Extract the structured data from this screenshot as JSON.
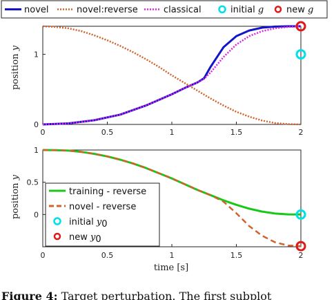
{
  "chart_data": [
    {
      "type": "line",
      "xlabel": "",
      "ylabel": "position y",
      "xlim": [
        0,
        2
      ],
      "ylim": [
        0,
        1.4
      ],
      "xticks": [
        "0",
        "0.5",
        "1",
        "1.5",
        "2"
      ],
      "yticks": [
        "0",
        "1"
      ],
      "ytick_values": [
        0,
        1
      ],
      "legend_position": "top",
      "series": [
        {
          "name": "novel",
          "color": "#1414c8",
          "style": "solid",
          "x": [
            0,
            0.2,
            0.4,
            0.6,
            0.8,
            1.0,
            1.1,
            1.2,
            1.25,
            1.3,
            1.4,
            1.5,
            1.6,
            1.7,
            1.8,
            1.9,
            2.0
          ],
          "y": [
            0,
            0.015,
            0.06,
            0.14,
            0.27,
            0.43,
            0.52,
            0.6,
            0.66,
            0.82,
            1.1,
            1.26,
            1.34,
            1.38,
            1.395,
            1.4,
            1.4
          ]
        },
        {
          "name": "novel:reverse",
          "color": "#d0622c",
          "style": "dotted",
          "x": [
            0,
            0.1,
            0.2,
            0.3,
            0.4,
            0.5,
            0.6,
            0.7,
            0.8,
            0.9,
            1.0,
            1.1,
            1.2,
            1.3,
            1.4,
            1.5,
            1.6,
            1.7,
            1.8,
            1.9,
            2.0
          ],
          "y": [
            1.4,
            1.39,
            1.37,
            1.33,
            1.27,
            1.2,
            1.12,
            1.03,
            0.93,
            0.82,
            0.7,
            0.59,
            0.48,
            0.37,
            0.27,
            0.18,
            0.11,
            0.055,
            0.02,
            0.005,
            0
          ]
        },
        {
          "name": "classical",
          "color": "#e020e0",
          "style": "dotted",
          "x": [
            0,
            0.2,
            0.4,
            0.6,
            0.8,
            1.0,
            1.1,
            1.2,
            1.25,
            1.3,
            1.4,
            1.5,
            1.6,
            1.7,
            1.8,
            1.9,
            2.0
          ],
          "y": [
            0,
            0.015,
            0.06,
            0.14,
            0.27,
            0.43,
            0.52,
            0.6,
            0.65,
            0.74,
            0.96,
            1.14,
            1.26,
            1.33,
            1.37,
            1.39,
            1.4
          ]
        }
      ],
      "markers": [
        {
          "name": "initial g",
          "color": "#00e0e8",
          "x": 2.0,
          "y": 1.0
        },
        {
          "name": "new g",
          "color": "#e01818",
          "x": 2.0,
          "y": 1.4
        }
      ]
    },
    {
      "type": "line",
      "xlabel": "time [s]",
      "ylabel": "position y",
      "xlim": [
        0,
        2
      ],
      "ylim": [
        -0.5,
        1.0
      ],
      "xticks": [
        "0",
        "0.5",
        "1",
        "1.5",
        "2"
      ],
      "yticks": [
        "0",
        "0.5",
        "1"
      ],
      "ytick_values": [
        0,
        0.5,
        1
      ],
      "legend_position": "lower-left",
      "series": [
        {
          "name": "training - reverse",
          "color": "#18c818",
          "style": "solid",
          "x": [
            0,
            0.1,
            0.2,
            0.3,
            0.4,
            0.5,
            0.6,
            0.7,
            0.8,
            0.9,
            1.0,
            1.1,
            1.2,
            1.3,
            1.4,
            1.5,
            1.6,
            1.7,
            1.8,
            1.9,
            2.0
          ],
          "y": [
            1.0,
            0.998,
            0.99,
            0.97,
            0.94,
            0.9,
            0.85,
            0.79,
            0.72,
            0.64,
            0.56,
            0.47,
            0.38,
            0.3,
            0.22,
            0.15,
            0.09,
            0.045,
            0.015,
            0.003,
            0
          ]
        },
        {
          "name": "novel - reverse",
          "color": "#d0622c",
          "style": "dashed",
          "x": [
            0,
            0.1,
            0.2,
            0.3,
            0.4,
            0.5,
            0.6,
            0.7,
            0.8,
            0.9,
            1.0,
            1.1,
            1.2,
            1.3,
            1.4,
            1.5,
            1.6,
            1.7,
            1.8,
            1.9,
            2.0
          ],
          "y": [
            1.0,
            0.998,
            0.99,
            0.97,
            0.94,
            0.9,
            0.85,
            0.79,
            0.72,
            0.64,
            0.56,
            0.47,
            0.38,
            0.3,
            0.2,
            0.02,
            -0.18,
            -0.33,
            -0.43,
            -0.48,
            -0.49
          ]
        }
      ],
      "markers": [
        {
          "name": "initial y0",
          "color": "#00e0e8",
          "x": 2.0,
          "y": 0
        },
        {
          "name": "new y0",
          "color": "#e01818",
          "x": 2.0,
          "y": -0.49
        }
      ]
    }
  ],
  "legend_top": {
    "items": [
      "novel",
      "novel:reverse",
      "classical",
      "initial",
      "new"
    ],
    "var": "g"
  },
  "legend_bottom": {
    "items": [
      "training - reverse",
      "novel - reverse",
      "initial",
      "new"
    ],
    "var": "y",
    "sub": "0"
  },
  "caption": {
    "bold": "Figure 4:",
    "text": "Target perturbation. The first subplot"
  }
}
